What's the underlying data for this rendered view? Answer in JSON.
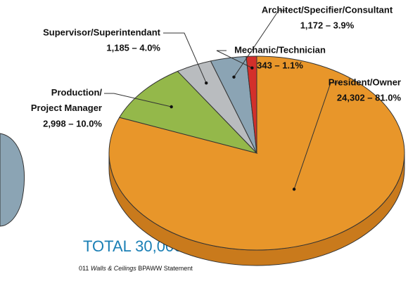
{
  "chart_data": {
    "type": "pie",
    "categories": [
      "President/Owner",
      "Production/ Project Manager",
      "Supervisor/Superintendant",
      "Architect/Specifier/Consultant",
      "Mechanic/Technician"
    ],
    "values": [
      24302,
      2998,
      1185,
      1172,
      343
    ],
    "value_labels": [
      "24,302 – 81.0%",
      "2,998 – 10.0%",
      "1,185 – 4.0%",
      "1,172 – 3.9%",
      "343 – 1.1%"
    ],
    "colors": [
      "#e8962a",
      "#94b84a",
      "#b9bcbf",
      "#8ba4b4",
      "#d3302b"
    ],
    "total": "TOTAL 30,000",
    "source": [
      "011 ",
      "Walls & Ceilings",
      " BPAWW Statement"
    ]
  }
}
